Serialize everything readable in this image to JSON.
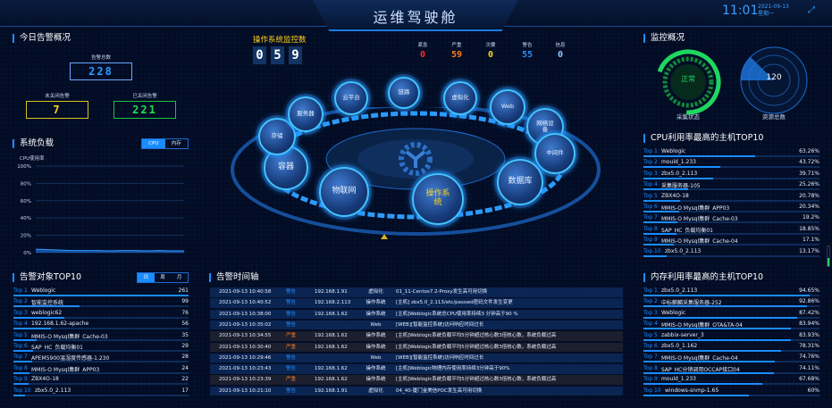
{
  "header": {
    "title": "运维驾驶舱",
    "time": "11:01",
    "date": "2021-09-13",
    "weekday": "星期一",
    "expand_icon": "expand-icon"
  },
  "today_alarms": {
    "title": "今日告警概况",
    "total_label": "告警总数",
    "total": "228",
    "open_label": "未关闭告警",
    "open": "7",
    "closed_label": "已关闭告警",
    "closed": "221"
  },
  "system_load": {
    "title": "系统负载",
    "tabs": [
      "CPU",
      "内存"
    ],
    "active_tab": "CPU",
    "ylabel": "CPU使用率",
    "yticks": [
      "100%",
      "80%",
      "60%",
      "40%",
      "20%",
      "0%"
    ],
    "ylim": [
      0,
      100
    ],
    "series": [
      4,
      3.5,
      3,
      2.5,
      2.5,
      2.5,
      2,
      2.5,
      2.5,
      2,
      2.5,
      2,
      2
    ]
  },
  "alarm_objects": {
    "title": "告警对象TOP10",
    "tabs": [
      "日",
      "周",
      "月"
    ],
    "active_tab": "日",
    "items": [
      {
        "rank": "Top 1",
        "name": "Weblogic",
        "value": 261
      },
      {
        "rank": "Top 2",
        "name": "智能监控系统",
        "value": 99
      },
      {
        "rank": "Top 3",
        "name": "weblogic62",
        "value": 76
      },
      {
        "rank": "Top 4",
        "name": "192.168.1.62-apache",
        "value": 56
      },
      {
        "rank": "Top 5",
        "name": "MMIS-O Mysql集群_Cache-03",
        "value": 35
      },
      {
        "rank": "Top 6",
        "name": "SAP_HC_负载均衡01",
        "value": 29
      },
      {
        "rank": "Top 7",
        "name": "APEM5900温湿度传感器-1.230",
        "value": 28
      },
      {
        "rank": "Top 8",
        "name": "MMIS-O Mysql集群_APP03",
        "value": 24
      },
      {
        "rank": "Top 9",
        "name": "ZBX4O-18",
        "value": 22
      },
      {
        "rank": "Top 10",
        "name": "zbx5.0_2.113",
        "value": 17
      }
    ]
  },
  "os_monitor": {
    "title": "操作系统监控数",
    "digits": [
      "0",
      "5",
      "9"
    ],
    "severity": [
      {
        "label": "紧急",
        "value": "0",
        "color": "#ff2a2a"
      },
      {
        "label": "严重",
        "value": "59",
        "color": "#ff7a1a"
      },
      {
        "label": "次要",
        "value": "0",
        "color": "#ffd21a"
      },
      {
        "label": "警告",
        "value": "55",
        "color": "#2a8cff"
      },
      {
        "label": "信息",
        "value": "0",
        "color": "#8ccaff"
      }
    ]
  },
  "categories": [
    "云平台",
    "链路",
    "虚拟化",
    "Web",
    "网络设备",
    "中间件",
    "数据库",
    "操作系统",
    "物联网",
    "容器",
    "存储",
    "服务器"
  ],
  "active_category": "操作系统",
  "monitor_overview": {
    "title": "监控概况",
    "status": "正常",
    "status_label": "采集状态",
    "resource_total": "120",
    "resource_label": "资源总数",
    "status_color": "#1ed760"
  },
  "timeline": {
    "title": "告警时间轴",
    "rows": [
      {
        "time": "2021-09-13 10:40:58",
        "level": "警告",
        "ip": "192.168.1.91",
        "type": "虚拟化",
        "msg": "01_11-Centos7.2-Proxy发生高可用切换"
      },
      {
        "time": "2021-09-13 10:40:52",
        "level": "警告",
        "ip": "192.168.2.113",
        "type": "操作系统",
        "msg": "[主机] zbx5.0_2.113/etc/passwd密码文件发生变更"
      },
      {
        "time": "2021-09-13 10:38:00",
        "level": "警告",
        "ip": "192.168.1.62",
        "type": "操作系统",
        "msg": "[主机]Weblogic系统总CPU使用率持续3 分钟高于90 %"
      },
      {
        "time": "2021-09-13 10:35:02",
        "level": "警告",
        "ip": "",
        "type": "Web",
        "msg": "[WEB][智能监控系统]访问响应时间过长"
      },
      {
        "time": "2021-09-13 10:34:55",
        "level": "严重",
        "ip": "192.168.1.62",
        "type": "操作系统",
        "msg": "[主机]Weblogic系统负载平均5分钟超过核心数3倍核心数，系统负载过高"
      },
      {
        "time": "2021-09-13 10:30:40",
        "level": "严重",
        "ip": "192.168.1.62",
        "type": "操作系统",
        "msg": "[主机]Weblogic系统负载平均5分钟超过核心数3倍核心数，系统负载过高"
      },
      {
        "time": "2021-09-13 10:29:46",
        "level": "警告",
        "ip": "",
        "type": "Web",
        "msg": "[WEB][智能监控系统]访问响应时间过长"
      },
      {
        "time": "2021-09-13 10:23:43",
        "level": "警告",
        "ip": "192.168.1.62",
        "type": "操作系统",
        "msg": "[主机]Weblogic物理内存使用率持续3分钟高于90%"
      },
      {
        "time": "2021-09-13 10:23:39",
        "level": "严重",
        "ip": "192.168.1.62",
        "type": "操作系统",
        "msg": "[主机]Weblogic系统负载平均5分钟超过核心数3倍核心数，系统负载过高"
      },
      {
        "time": "2021-09-13 10:21:10",
        "level": "警告",
        "ip": "192.168.1.91",
        "type": "虚拟化",
        "msg": "04_40-厦门金美信POC发生高可用切换"
      }
    ]
  },
  "cpu_top": {
    "title": "CPU利用率最高的主机TOP10",
    "items": [
      {
        "rank": "Top 1",
        "name": "Weblogic",
        "value": "63.26%",
        "pct": 63.26
      },
      {
        "rank": "Top 2",
        "name": "mould_1.233",
        "value": "43.72%",
        "pct": 43.72
      },
      {
        "rank": "Top 3",
        "name": "zbx5.0_2.113",
        "value": "39.71%",
        "pct": 39.71
      },
      {
        "rank": "Top 4",
        "name": "采集服务器-105",
        "value": "25.26%",
        "pct": 25.26
      },
      {
        "rank": "Top 5",
        "name": "ZBX4O-18",
        "value": "20.78%",
        "pct": 20.78
      },
      {
        "rank": "Top 6",
        "name": "MMIS-O Mysql集群_APP03",
        "value": "20.34%",
        "pct": 20.34
      },
      {
        "rank": "Top 7",
        "name": "MMIS-O Mysql集群_Cache-03",
        "value": "19.2%",
        "pct": 19.2
      },
      {
        "rank": "Top 8",
        "name": "SAP_HC_负载均衡01",
        "value": "18.85%",
        "pct": 18.85
      },
      {
        "rank": "Top 9",
        "name": "MMIS-O Mysql集群_Cache-04",
        "value": "17.1%",
        "pct": 17.1
      },
      {
        "rank": "Top 10",
        "name": "zbx5.0_2.113",
        "value": "13.17%",
        "pct": 13.17
      }
    ]
  },
  "mem_top": {
    "title": "内存利用率最高的主机TOP10",
    "items": [
      {
        "rank": "Top 1",
        "name": "zbx5.0_2.113",
        "value": "94.65%",
        "pct": 94.65
      },
      {
        "rank": "Top 2",
        "name": "中标麒麟采集服务器-252",
        "value": "92.86%",
        "pct": 92.86
      },
      {
        "rank": "Top 3",
        "name": "Weblogic",
        "value": "87.42%",
        "pct": 87.42
      },
      {
        "rank": "Top 4",
        "name": "MMIS-O Mysql集群_OTA&TA-04",
        "value": "83.94%",
        "pct": 83.94
      },
      {
        "rank": "Top 5",
        "name": "zabbix-server_3",
        "value": "83.93%",
        "pct": 83.93
      },
      {
        "rank": "Top 6",
        "name": "zbx5.0_1.162",
        "value": "78.31%",
        "pct": 78.31
      },
      {
        "rank": "Top 7",
        "name": "MMIS-O Mysql集群_Cache-04",
        "value": "74.76%",
        "pct": 74.76
      },
      {
        "rank": "Top 8",
        "name": "SAP_HC分销调用OCCAP接口04",
        "value": "74.11%",
        "pct": 74.11
      },
      {
        "rank": "Top 9",
        "name": "mould_1.233",
        "value": "67.68%",
        "pct": 67.68
      },
      {
        "rank": "Top 10",
        "name": "windows-snmp-1.65",
        "value": "60%",
        "pct": 60
      }
    ]
  }
}
